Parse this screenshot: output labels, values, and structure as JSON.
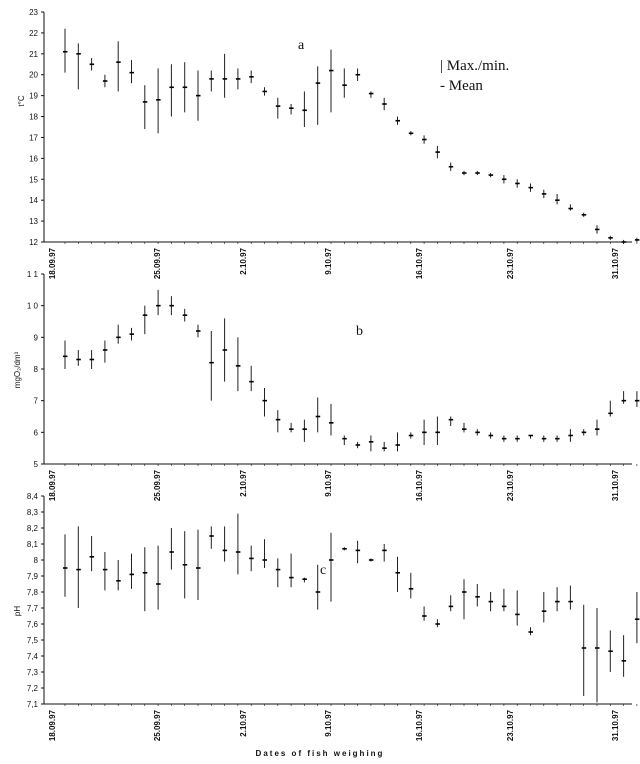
{
  "chart_data": [
    {
      "type": "scatter",
      "panel_label": "a",
      "ylabel": "t°C",
      "ylim": [
        12,
        23
      ],
      "yticks": [
        "12",
        "13",
        "14",
        "15",
        "16",
        "17",
        "18",
        "19",
        "20",
        "21",
        "22",
        "23"
      ],
      "xticks": [
        "18.09.97",
        "25.09.97",
        "2.10.97",
        "9.10.97",
        "16.10.97",
        "23.10.97",
        "31.10.97"
      ],
      "legend": [
        "| Max./min.",
        "- Mean"
      ],
      "series": [
        {
          "x": [
            0,
            1,
            2,
            3,
            4,
            5,
            6,
            7,
            8,
            9,
            10,
            11,
            12,
            13,
            14,
            15,
            16,
            17,
            18,
            19,
            20,
            21,
            22,
            23,
            24,
            25,
            26,
            27,
            28,
            29,
            30,
            31,
            32,
            33,
            34,
            35,
            36,
            37,
            38,
            39,
            40,
            41,
            42,
            43
          ],
          "mean": [
            21.1,
            21.0,
            20.5,
            19.7,
            20.6,
            20.1,
            18.7,
            18.8,
            19.4,
            19.4,
            19.0,
            19.8,
            19.8,
            19.8,
            19.9,
            19.2,
            18.5,
            18.4,
            18.3,
            19.6,
            20.2,
            19.5,
            20.0,
            19.1,
            18.6,
            17.8,
            17.2,
            16.9,
            16.3,
            15.6,
            15.3,
            15.3,
            15.2,
            15.0,
            14.8,
            14.6,
            14.3,
            14.0,
            13.6,
            13.3,
            12.6,
            12.2,
            12.0,
            12.1
          ],
          "max": [
            22.2,
            21.5,
            20.8,
            20.0,
            21.6,
            20.7,
            19.5,
            20.3,
            20.5,
            20.6,
            20.2,
            20.2,
            21.0,
            20.3,
            20.2,
            19.4,
            18.9,
            18.6,
            19.2,
            20.4,
            21.2,
            20.3,
            20.3,
            19.2,
            18.9,
            18.0,
            17.3,
            17.1,
            16.6,
            15.8,
            15.4,
            15.4,
            15.3,
            15.2,
            15.0,
            14.8,
            14.5,
            14.3,
            13.8,
            13.4,
            12.8,
            12.3,
            12.1,
            12.2
          ],
          "min": [
            20.1,
            19.3,
            20.2,
            19.4,
            19.2,
            19.6,
            17.4,
            17.2,
            18.0,
            18.2,
            17.8,
            19.2,
            18.9,
            19.3,
            19.6,
            19.0,
            17.9,
            18.1,
            17.5,
            17.6,
            18.2,
            18.9,
            19.7,
            18.9,
            18.3,
            17.6,
            17.1,
            16.7,
            16.0,
            15.4,
            15.2,
            15.2,
            15.1,
            14.8,
            14.6,
            14.4,
            14.1,
            13.8,
            13.5,
            13.2,
            12.4,
            12.1,
            11.9,
            12.0
          ]
        }
      ]
    },
    {
      "type": "scatter",
      "panel_label": "b",
      "ylabel": "mgO₂/dm³",
      "ylim": [
        5,
        11
      ],
      "yticks": [
        "5",
        "6",
        "7",
        "8",
        "9",
        "1 0",
        "1 1"
      ],
      "xticks": [
        "18.09.97",
        "25.09.97",
        "2.10.97",
        "9.10.97",
        "16.10.97",
        "23.10.97",
        "31.10.97"
      ],
      "series": [
        {
          "x": [
            0,
            1,
            2,
            3,
            4,
            5,
            6,
            7,
            8,
            9,
            10,
            11,
            12,
            13,
            14,
            15,
            16,
            17,
            18,
            19,
            20,
            21,
            22,
            23,
            24,
            25,
            26,
            27,
            28,
            29,
            30,
            31,
            32,
            33,
            34,
            35,
            36,
            37,
            38,
            39,
            40,
            41,
            42,
            43
          ],
          "mean": [
            8.4,
            8.3,
            8.3,
            8.6,
            9.0,
            9.1,
            9.7,
            10.0,
            10.0,
            9.7,
            9.2,
            8.2,
            8.6,
            8.1,
            7.6,
            7.0,
            6.4,
            6.1,
            6.1,
            6.5,
            6.3,
            5.8,
            5.6,
            5.7,
            5.5,
            5.6,
            5.9,
            6.0,
            6.0,
            6.4,
            6.1,
            6.0,
            5.9,
            5.8,
            5.8,
            5.9,
            5.8,
            5.8,
            5.9,
            6.0,
            6.1,
            6.6,
            7.0,
            7.0
          ],
          "max": [
            8.9,
            8.6,
            8.6,
            8.9,
            9.4,
            9.3,
            10.0,
            10.5,
            10.3,
            9.9,
            9.4,
            9.2,
            9.6,
            9.0,
            8.1,
            7.4,
            6.7,
            6.3,
            6.4,
            7.1,
            6.9,
            5.9,
            5.7,
            5.9,
            5.7,
            6.0,
            6.0,
            6.4,
            6.5,
            6.5,
            6.3,
            6.1,
            6.0,
            5.9,
            5.9,
            5.9,
            5.9,
            5.9,
            6.1,
            6.1,
            6.4,
            7.0,
            7.3,
            7.3
          ],
          "min": [
            8.0,
            8.1,
            8.0,
            8.2,
            8.8,
            8.9,
            9.1,
            9.7,
            9.7,
            9.5,
            9.0,
            7.0,
            7.6,
            7.3,
            7.3,
            6.5,
            6.0,
            6.0,
            5.7,
            6.0,
            5.9,
            5.6,
            5.5,
            5.4,
            5.4,
            5.4,
            5.8,
            5.6,
            5.6,
            6.2,
            6.0,
            5.9,
            5.8,
            5.7,
            5.7,
            5.8,
            5.7,
            5.7,
            5.7,
            5.9,
            5.9,
            6.5,
            6.9,
            6.8
          ]
        }
      ]
    },
    {
      "type": "scatter",
      "panel_label": "c",
      "ylabel": "pH",
      "ylim": [
        7.1,
        8.4
      ],
      "yticks": [
        "7,1",
        "7,2",
        "7,3",
        "7,4",
        "7,5",
        "7,6",
        "7,7",
        "7,8",
        "7,9",
        "8",
        "8,1",
        "8,2",
        "8,3",
        "8,4"
      ],
      "xticks": [
        "18.09.97",
        "25.09.97",
        "2.10.97",
        "9.10.97",
        "16.10.97",
        "23.10.97",
        "31.10.97"
      ],
      "series": [
        {
          "x": [
            0,
            1,
            2,
            3,
            4,
            5,
            6,
            7,
            8,
            9,
            10,
            11,
            12,
            13,
            14,
            15,
            16,
            17,
            18,
            19,
            20,
            21,
            22,
            23,
            24,
            25,
            26,
            27,
            28,
            29,
            30,
            31,
            32,
            33,
            34,
            35,
            36,
            37,
            38,
            39,
            40,
            41,
            42,
            43
          ],
          "mean": [
            7.95,
            7.94,
            8.02,
            7.94,
            7.87,
            7.91,
            7.92,
            7.85,
            8.05,
            7.97,
            7.95,
            8.15,
            8.06,
            8.05,
            8.01,
            8.0,
            7.94,
            7.89,
            7.88,
            7.8,
            8.0,
            8.07,
            8.06,
            8.0,
            8.06,
            7.92,
            7.82,
            7.65,
            7.6,
            7.71,
            7.8,
            7.77,
            7.74,
            7.71,
            7.66,
            7.55,
            7.68,
            7.74,
            7.74,
            7.45,
            7.45,
            7.43,
            7.37,
            7.63
          ],
          "max": [
            8.16,
            8.21,
            8.15,
            8.05,
            8.0,
            8.04,
            8.08,
            8.09,
            8.2,
            8.18,
            8.19,
            8.21,
            8.21,
            8.29,
            8.09,
            8.13,
            8.01,
            8.04,
            7.89,
            7.97,
            8.17,
            8.08,
            8.12,
            8.01,
            8.1,
            8.02,
            7.92,
            7.71,
            7.63,
            7.78,
            7.88,
            7.85,
            7.8,
            7.82,
            7.81,
            7.58,
            7.8,
            7.83,
            7.84,
            7.72,
            7.7,
            7.56,
            7.53,
            7.8
          ],
          "min": [
            7.77,
            7.7,
            7.93,
            7.81,
            7.81,
            7.82,
            7.68,
            7.69,
            7.94,
            7.76,
            7.75,
            8.07,
            7.99,
            7.91,
            7.93,
            7.95,
            7.83,
            7.83,
            7.86,
            7.69,
            7.74,
            8.06,
            7.98,
            7.99,
            7.99,
            7.8,
            7.76,
            7.62,
            7.58,
            7.68,
            7.63,
            7.71,
            7.68,
            7.68,
            7.59,
            7.53,
            7.61,
            7.68,
            7.69,
            7.15,
            7.11,
            7.3,
            7.27,
            7.48
          ]
        }
      ]
    }
  ],
  "figure": {
    "xlabel": "Dates of fish weighing"
  }
}
